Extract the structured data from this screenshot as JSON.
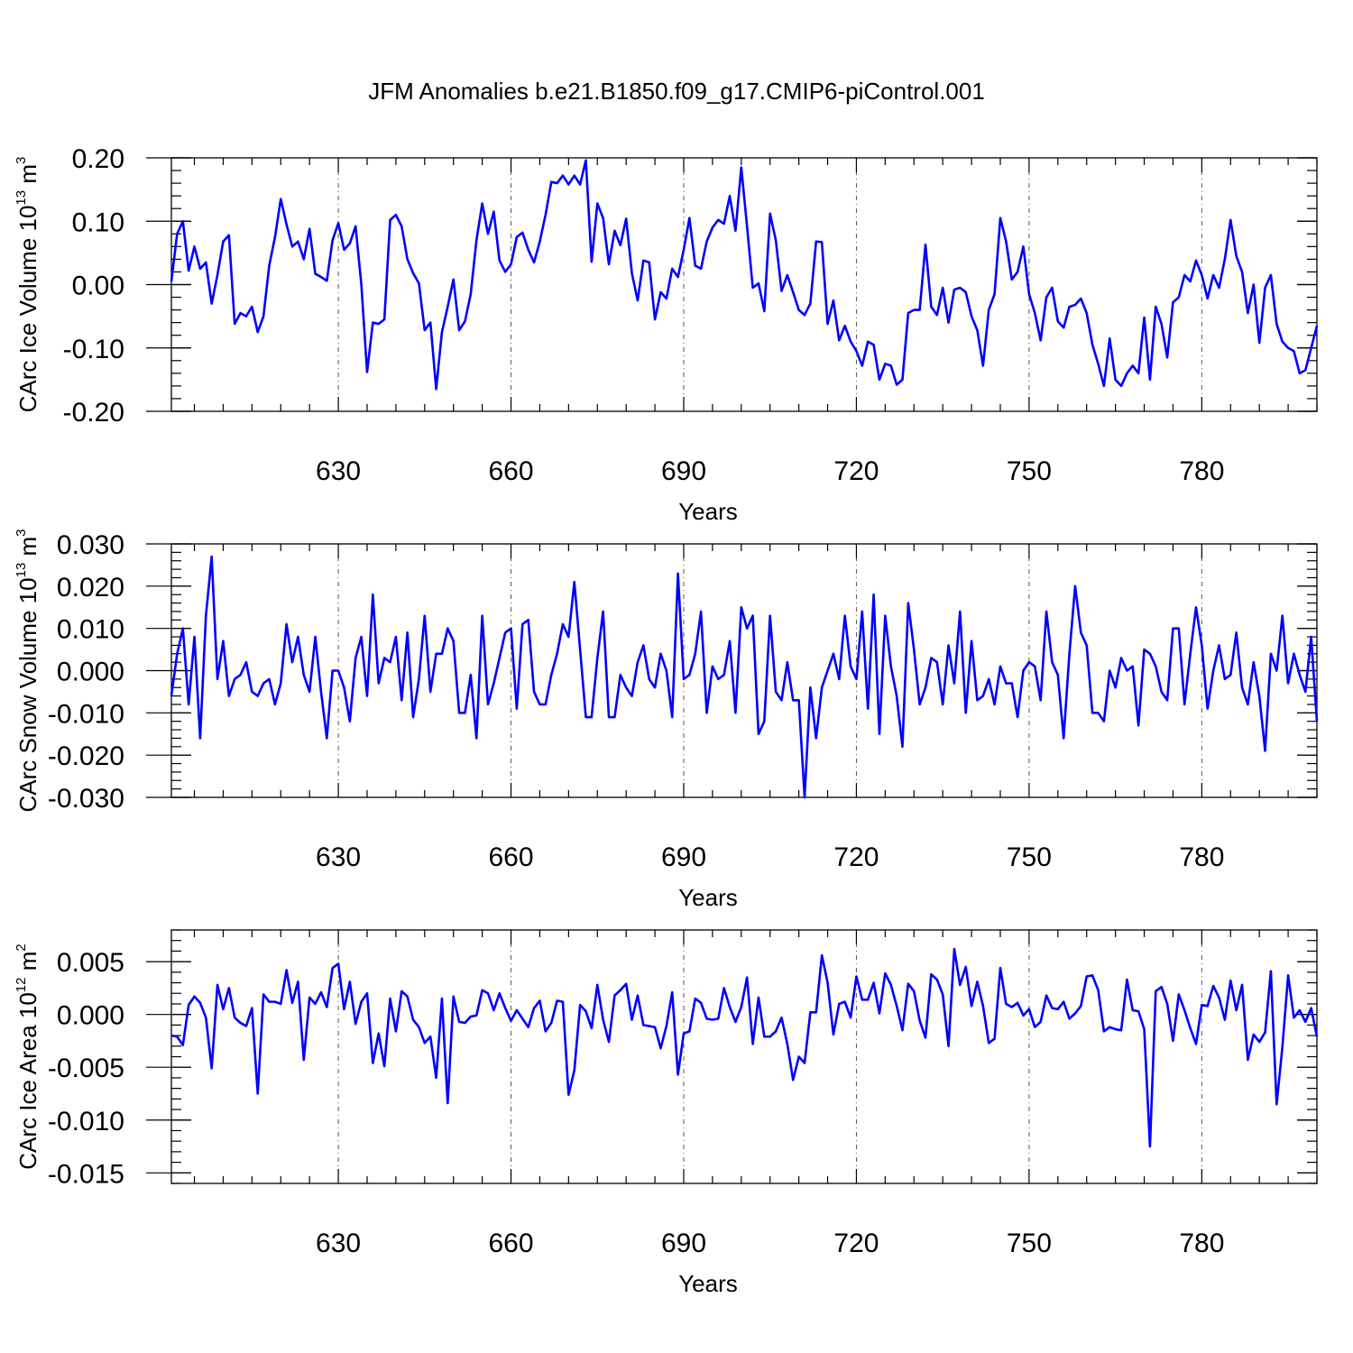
{
  "title": "JFM Anomalies b.e21.B1850.f09_g17.CMIP6-piControl.001",
  "chart_data": [
    {
      "type": "line",
      "ylabel": "CArc Ice Volume 10",
      "ylabel_sup": "13",
      "ylabel_unit": " m",
      "ylabel_unit_sup": "3",
      "xlabel": "Years",
      "xlim": [
        601,
        800
      ],
      "ylim": [
        -0.2,
        0.2
      ],
      "yticks": [
        -0.2,
        -0.1,
        0.0,
        0.1,
        0.2
      ],
      "yticklabels": [
        "-0.20",
        "-0.10",
        "0.00",
        "0.10",
        "0.20"
      ],
      "xticks": [
        630,
        660,
        690,
        720,
        750,
        780
      ],
      "xticklabels": [
        "630",
        "660",
        "690",
        "720",
        "750",
        "780"
      ],
      "color": "#0000ff",
      "x_start": 601,
      "values": [
        0.005,
        0.08,
        0.1,
        0.022,
        0.06,
        0.025,
        0.035,
        -0.03,
        0.015,
        0.068,
        0.078,
        -0.062,
        -0.045,
        -0.05,
        -0.035,
        -0.075,
        -0.05,
        0.03,
        0.075,
        0.135,
        0.095,
        0.06,
        0.068,
        0.04,
        0.088,
        0.017,
        0.012,
        0.006,
        0.07,
        0.097,
        0.055,
        0.065,
        0.092,
        0.0,
        -0.138,
        -0.06,
        -0.062,
        -0.055,
        0.102,
        0.11,
        0.092,
        0.04,
        0.018,
        0.002,
        -0.072,
        -0.06,
        -0.165,
        -0.075,
        -0.035,
        0.008,
        -0.072,
        -0.058,
        -0.015,
        0.07,
        0.128,
        0.08,
        0.115,
        0.038,
        0.02,
        0.032,
        0.075,
        0.082,
        0.055,
        0.035,
        0.068,
        0.11,
        0.162,
        0.16,
        0.172,
        0.158,
        0.172,
        0.158,
        0.196,
        0.036,
        0.128,
        0.105,
        0.032,
        0.085,
        0.062,
        0.104,
        0.018,
        -0.025,
        0.038,
        0.035,
        -0.055,
        -0.012,
        -0.022,
        0.025,
        0.012,
        0.055,
        0.105,
        0.03,
        0.025,
        0.068,
        0.09,
        0.102,
        0.096,
        0.14,
        0.085,
        0.185,
        0.092,
        -0.005,
        0.002,
        -0.042,
        0.112,
        0.07,
        -0.01,
        0.015,
        -0.012,
        -0.04,
        -0.048,
        -0.03,
        0.068,
        0.067,
        -0.062,
        -0.025,
        -0.088,
        -0.065,
        -0.09,
        -0.105,
        -0.128,
        -0.09,
        -0.095,
        -0.15,
        -0.125,
        -0.128,
        -0.158,
        -0.15,
        -0.045,
        -0.04,
        -0.04,
        0.063,
        -0.035,
        -0.048,
        -0.005,
        -0.06,
        -0.008,
        -0.005,
        -0.012,
        -0.05,
        -0.072,
        -0.128,
        -0.04,
        -0.015,
        0.105,
        0.068,
        0.008,
        0.02,
        0.06,
        -0.015,
        -0.045,
        -0.088,
        -0.02,
        -0.005,
        -0.058,
        -0.068,
        -0.035,
        -0.032,
        -0.022,
        -0.045,
        -0.095,
        -0.125,
        -0.16,
        -0.085,
        -0.15,
        -0.16,
        -0.14,
        -0.128,
        -0.14,
        -0.052,
        -0.15,
        -0.035,
        -0.062,
        -0.115,
        -0.028,
        -0.02,
        0.015,
        0.005,
        0.038,
        0.015,
        -0.022,
        0.015,
        -0.005,
        0.04,
        0.102,
        0.045,
        0.02,
        -0.045,
        0.0,
        -0.092,
        -0.005,
        0.015,
        -0.062,
        -0.09,
        -0.1,
        -0.105,
        -0.14,
        -0.135,
        -0.1,
        -0.065
      ]
    },
    {
      "type": "line",
      "ylabel": "CArc Snow Volume 10",
      "ylabel_sup": "13",
      "ylabel_unit": " m",
      "ylabel_unit_sup": "3",
      "xlabel": "Years",
      "xlim": [
        601,
        800
      ],
      "ylim": [
        -0.03,
        0.03
      ],
      "yticks": [
        -0.03,
        -0.02,
        -0.01,
        0.0,
        0.01,
        0.02,
        0.03
      ],
      "yticklabels": [
        "-0.030",
        "-0.020",
        "-0.010",
        "0.000",
        "0.010",
        "0.020",
        "0.030"
      ],
      "xticks": [
        630,
        660,
        690,
        720,
        750,
        780
      ],
      "xticklabels": [
        "630",
        "660",
        "690",
        "720",
        "750",
        "780"
      ],
      "color": "#0000ff",
      "x_start": 601,
      "values": [
        -0.006,
        0.004,
        0.01,
        -0.008,
        0.008,
        -0.016,
        0.013,
        0.027,
        -0.002,
        0.007,
        -0.006,
        -0.002,
        -0.001,
        0.002,
        -0.005,
        -0.006,
        -0.003,
        -0.002,
        -0.008,
        -0.003,
        0.011,
        0.002,
        0.008,
        -0.001,
        -0.005,
        0.008,
        -0.005,
        -0.016,
        0.0,
        -0.0,
        -0.004,
        -0.012,
        0.003,
        0.008,
        -0.006,
        0.018,
        -0.003,
        0.003,
        0.002,
        0.008,
        -0.007,
        0.009,
        -0.011,
        -0.002,
        0.013,
        -0.005,
        0.004,
        0.004,
        0.01,
        0.007,
        -0.01,
        -0.01,
        -0.001,
        -0.016,
        0.013,
        -0.008,
        -0.003,
        0.003,
        0.009,
        0.01,
        -0.009,
        0.011,
        0.012,
        -0.005,
        -0.008,
        -0.008,
        -0.001,
        0.004,
        0.011,
        0.008,
        0.021,
        0.005,
        -0.011,
        -0.011,
        0.003,
        0.014,
        -0.011,
        -0.011,
        -0.001,
        -0.004,
        -0.006,
        0.002,
        0.006,
        -0.002,
        -0.004,
        0.004,
        0.0,
        -0.011,
        0.023,
        -0.002,
        -0.001,
        0.004,
        0.014,
        -0.01,
        0.001,
        -0.002,
        -0.001,
        0.007,
        -0.01,
        0.015,
        0.01,
        0.013,
        -0.015,
        -0.012,
        0.013,
        -0.005,
        -0.007,
        0.002,
        -0.007,
        -0.007,
        -0.03,
        -0.004,
        -0.016,
        -0.004,
        0.0,
        0.004,
        -0.002,
        0.013,
        0.001,
        -0.002,
        0.014,
        -0.009,
        0.018,
        -0.015,
        0.013,
        0.001,
        -0.006,
        -0.018,
        0.016,
        0.005,
        -0.008,
        -0.004,
        0.003,
        0.002,
        -0.008,
        0.006,
        -0.003,
        0.014,
        -0.01,
        0.007,
        -0.007,
        -0.006,
        -0.002,
        -0.008,
        0.001,
        -0.003,
        -0.003,
        -0.011,
        0.0,
        0.002,
        0.001,
        -0.007,
        0.014,
        0.002,
        -0.001,
        -0.016,
        0.004,
        0.02,
        0.009,
        0.006,
        -0.01,
        -0.01,
        -0.012,
        -0.0,
        -0.004,
        0.003,
        0.0,
        0.001,
        -0.013,
        0.005,
        0.004,
        0.001,
        -0.005,
        -0.007,
        0.01,
        0.01,
        -0.008,
        0.004,
        0.015,
        0.006,
        -0.009,
        0.0,
        0.006,
        -0.002,
        -0.001,
        0.009,
        -0.004,
        -0.008,
        0.002,
        -0.006,
        -0.019,
        0.004,
        0.0,
        0.013,
        -0.003,
        0.004,
        -0.001,
        -0.005,
        0.008,
        -0.012
      ]
    },
    {
      "type": "line",
      "ylabel": "CArc Ice Area 10",
      "ylabel_sup": "12",
      "ylabel_unit": " m",
      "ylabel_unit_sup": "2",
      "xlabel": "Years",
      "xlim": [
        601,
        800
      ],
      "ylim": [
        -0.016,
        0.008
      ],
      "yticks": [
        -0.015,
        -0.01,
        -0.005,
        0.0,
        0.005
      ],
      "yticklabels": [
        "-0.015",
        "-0.010",
        "-0.005",
        "0.000",
        "0.005"
      ],
      "xticks": [
        630,
        660,
        690,
        720,
        750,
        780
      ],
      "xticklabels": [
        "630",
        "660",
        "690",
        "720",
        "750",
        "780"
      ],
      "color": "#0000ff",
      "x_start": 601,
      "values": [
        -0.002,
        -0.0021,
        -0.0029,
        0.0009,
        0.0017,
        0.0011,
        -0.0003,
        -0.0051,
        0.0028,
        0.0005,
        0.0025,
        -0.0003,
        -0.0008,
        -0.0011,
        0.0006,
        -0.0075,
        0.0019,
        0.0012,
        0.0012,
        0.001,
        0.0042,
        0.0011,
        0.0031,
        -0.0043,
        0.0016,
        0.001,
        0.0021,
        0.0007,
        0.0044,
        0.0048,
        0.0005,
        0.0031,
        -0.0009,
        0.0012,
        0.002,
        -0.0046,
        -0.0018,
        -0.0049,
        0.0015,
        -0.0016,
        0.0022,
        0.0017,
        -0.0005,
        -0.0012,
        -0.0027,
        -0.0021,
        -0.006,
        0.0015,
        -0.0084,
        0.0017,
        -0.0007,
        -0.0008,
        -0.0002,
        -0.0001,
        0.0023,
        0.002,
        0.0004,
        0.002,
        0.0006,
        -0.0006,
        0.0004,
        -0.0004,
        -0.0012,
        0.0006,
        0.0013,
        -0.0016,
        -0.0008,
        0.0013,
        0.0012,
        -0.0076,
        -0.0053,
        0.0009,
        0.0003,
        -0.0013,
        0.0028,
        -0.0005,
        -0.0026,
        0.0018,
        0.0023,
        0.0029,
        -0.0005,
        0.0018,
        -0.001,
        -0.0011,
        -0.0012,
        -0.0032,
        -0.0011,
        0.0021,
        -0.0057,
        -0.0018,
        -0.0016,
        0.0015,
        0.0011,
        -0.0004,
        -0.0005,
        -0.0004,
        0.0025,
        0.0007,
        -0.0007,
        0.0007,
        0.0035,
        -0.0028,
        0.0016,
        -0.0021,
        -0.0021,
        -0.0016,
        -0.0003,
        -0.0028,
        -0.0062,
        -0.004,
        -0.0046,
        0.0002,
        0.0002,
        0.0056,
        0.003,
        -0.0019,
        0.001,
        0.0012,
        -0.0003,
        0.0036,
        0.0014,
        0.0014,
        0.003,
        0.0001,
        0.0039,
        0.0028,
        0.0008,
        -0.0015,
        0.0029,
        0.0022,
        -0.0006,
        -0.0022,
        0.0038,
        0.0033,
        0.0019,
        -0.003,
        0.0062,
        0.0028,
        0.0045,
        0.0008,
        0.0031,
        0.0008,
        -0.0027,
        -0.0023,
        0.0044,
        0.001,
        0.0007,
        0.0011,
        -0.0001,
        0.0005,
        -0.0012,
        -0.0007,
        0.0018,
        0.0006,
        0.0005,
        0.0012,
        -0.0004,
        0.0001,
        0.0008,
        0.0036,
        0.0037,
        0.0023,
        -0.0016,
        -0.0012,
        -0.0014,
        -0.0015,
        0.0033,
        0.0004,
        0.0003,
        -0.0014,
        -0.0125,
        0.0022,
        0.0026,
        0.001,
        -0.0025,
        0.0019,
        0.0004,
        -0.0013,
        -0.0028,
        0.0009,
        0.0008,
        0.0027,
        0.0016,
        -0.0005,
        0.0032,
        0.0004,
        0.0028,
        -0.0043,
        -0.0019,
        -0.0026,
        -0.0017,
        0.0041,
        -0.0085,
        -0.0031,
        0.0037,
        -0.0003,
        0.0004,
        -0.0007,
        0.0006,
        -0.0021
      ]
    }
  ]
}
